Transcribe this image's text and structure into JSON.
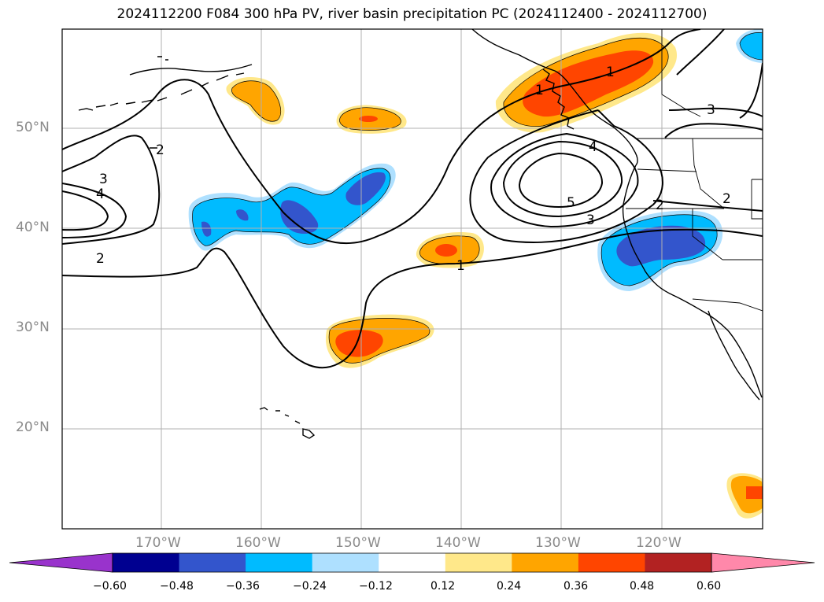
{
  "title": "2024112200 F084 300 hPa PV, river basin precipitation PC (2024112400 - 2024112700)",
  "latitude_labels": [
    "50°N",
    "40°N",
    "30°N",
    "20°N"
  ],
  "longitude_labels": [
    "170°W",
    "160°W",
    "150°W",
    "140°W",
    "130°W",
    "120°W"
  ],
  "contour_labels": [
    "3",
    "4",
    "2",
    "2",
    "1",
    "1",
    "5",
    "4",
    "3",
    "2",
    "3",
    "2",
    "1"
  ],
  "colorbar": {
    "ticks": [
      "−0.60",
      "−0.48",
      "−0.36",
      "−0.24",
      "−0.12",
      "0.12",
      "0.24",
      "0.36",
      "0.48",
      "0.60"
    ],
    "colors": [
      "#9933cc",
      "#000090",
      "#3355cc",
      "#00bbff",
      "#aee0ff",
      "#ffffff",
      "#ffe88a",
      "#ffa500",
      "#ff4500",
      "#b22222",
      "#ff88aa"
    ]
  },
  "fill_colors": {
    "light_yellow": "#ffe88a",
    "orange": "#ffa500",
    "red_orange": "#ff4500",
    "cyan": "#00bbff",
    "royal_blue": "#3355cc"
  }
}
